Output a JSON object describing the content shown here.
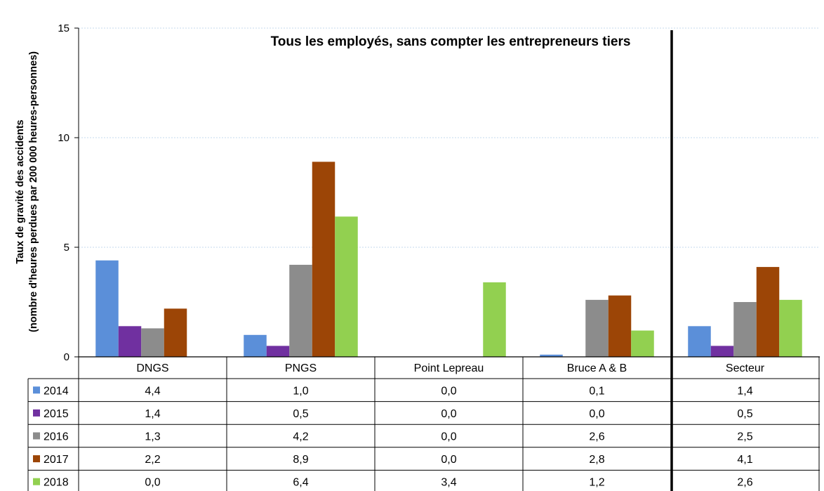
{
  "chart_data": {
    "type": "bar",
    "title": "Tous les employés, sans compter les entrepreneurs tiers",
    "ylabel_line1": "Taux de gravité des accidents",
    "ylabel_line2": "(nombre d'heures perdues par 200 000 heures-personnes)",
    "ylim": [
      0,
      15
    ],
    "yticks": [
      "0",
      "5",
      "10",
      "15"
    ],
    "grid": true,
    "legend": "table-left",
    "categories": [
      "DNGS",
      "PNGS",
      "Point Lepreau",
      "Bruce A & B",
      "Secteur"
    ],
    "series": [
      {
        "name": "2014",
        "color": "#5b8fd9",
        "values": [
          4.4,
          1.0,
          0.0,
          0.1,
          1.4
        ],
        "labels": [
          "4,4",
          "1,0",
          "0,0",
          "0,1",
          "1,4"
        ]
      },
      {
        "name": "2015",
        "color": "#7030a0",
        "values": [
          1.4,
          0.5,
          0.0,
          0.0,
          0.5
        ],
        "labels": [
          "1,4",
          "0,5",
          "0,0",
          "0,0",
          "0,5"
        ]
      },
      {
        "name": "2016",
        "color": "#8c8c8c",
        "values": [
          1.3,
          4.2,
          0.0,
          2.6,
          2.5
        ],
        "labels": [
          "1,3",
          "4,2",
          "0,0",
          "2,6",
          "2,5"
        ]
      },
      {
        "name": "2017",
        "color": "#9c4506",
        "values": [
          2.2,
          8.9,
          0.0,
          2.8,
          4.1
        ],
        "labels": [
          "2,2",
          "8,9",
          "0,0",
          "2,8",
          "4,1"
        ]
      },
      {
        "name": "2018",
        "color": "#92d050",
        "values": [
          0.0,
          6.4,
          3.4,
          1.2,
          2.6
        ],
        "labels": [
          "0,0",
          "6,4",
          "3,4",
          "1,2",
          "2,6"
        ]
      }
    ]
  }
}
